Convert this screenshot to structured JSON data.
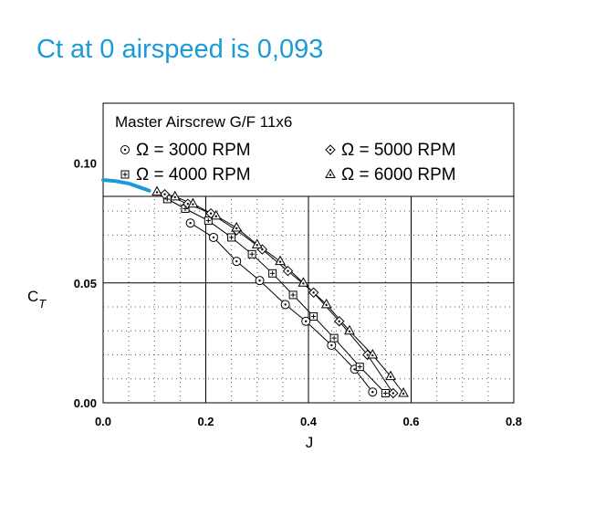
{
  "slide": {
    "title": "Ct at 0 airspeed is 0,093",
    "title_color": "#1a9ad6"
  },
  "chart_data": {
    "type": "scatter",
    "title": "Master Airscrew G/F 11x6",
    "xlabel": "J",
    "ylabel_main": "C",
    "ylabel_sub": "T",
    "xlim": [
      0.0,
      0.8
    ],
    "ylim": [
      0.0,
      0.125
    ],
    "x_ticks": [
      "0.0",
      "0.2",
      "0.4",
      "0.6",
      "0.8"
    ],
    "y_ticks": [
      "0.00",
      "0.05",
      "0.10"
    ],
    "grid": true,
    "minor_grid": "dotted",
    "legend_placement": "top, inside plot",
    "series": [
      {
        "name": "Ω = 3000 RPM",
        "marker": "circle-dot",
        "points": [
          [
            0.17,
            0.075
          ],
          [
            0.215,
            0.069
          ],
          [
            0.26,
            0.059
          ],
          [
            0.305,
            0.051
          ],
          [
            0.355,
            0.041
          ],
          [
            0.395,
            0.034
          ],
          [
            0.445,
            0.024
          ],
          [
            0.49,
            0.014
          ],
          [
            0.525,
            0.0045
          ]
        ]
      },
      {
        "name": "Ω = 4000 RPM",
        "marker": "square-plus",
        "points": [
          [
            0.125,
            0.085
          ],
          [
            0.16,
            0.081
          ],
          [
            0.205,
            0.076
          ],
          [
            0.25,
            0.069
          ],
          [
            0.29,
            0.062
          ],
          [
            0.33,
            0.054
          ],
          [
            0.37,
            0.045
          ],
          [
            0.41,
            0.036
          ],
          [
            0.45,
            0.027
          ],
          [
            0.5,
            0.015
          ],
          [
            0.55,
            0.004
          ]
        ]
      },
      {
        "name": "Ω = 5000 RPM",
        "marker": "diamond-dot",
        "points": [
          [
            0.12,
            0.087
          ],
          [
            0.165,
            0.083
          ],
          [
            0.21,
            0.079
          ],
          [
            0.26,
            0.072
          ],
          [
            0.31,
            0.064
          ],
          [
            0.36,
            0.055
          ],
          [
            0.41,
            0.046
          ],
          [
            0.46,
            0.034
          ],
          [
            0.515,
            0.02
          ],
          [
            0.565,
            0.004
          ]
        ]
      },
      {
        "name": "Ω = 6000 RPM",
        "marker": "triangle-dot",
        "points": [
          [
            0.105,
            0.088
          ],
          [
            0.14,
            0.086
          ],
          [
            0.175,
            0.083
          ],
          [
            0.22,
            0.078
          ],
          [
            0.26,
            0.073
          ],
          [
            0.3,
            0.066
          ],
          [
            0.345,
            0.059
          ],
          [
            0.39,
            0.05
          ],
          [
            0.435,
            0.041
          ],
          [
            0.48,
            0.03
          ],
          [
            0.525,
            0.02
          ],
          [
            0.56,
            0.011
          ],
          [
            0.585,
            0.004
          ]
        ]
      }
    ],
    "annotation_curve": {
      "color": "#1a9ad6",
      "points": [
        [
          0.0,
          0.093
        ],
        [
          0.025,
          0.0925
        ],
        [
          0.05,
          0.0915
        ],
        [
          0.07,
          0.09
        ],
        [
          0.09,
          0.0885
        ]
      ]
    }
  }
}
